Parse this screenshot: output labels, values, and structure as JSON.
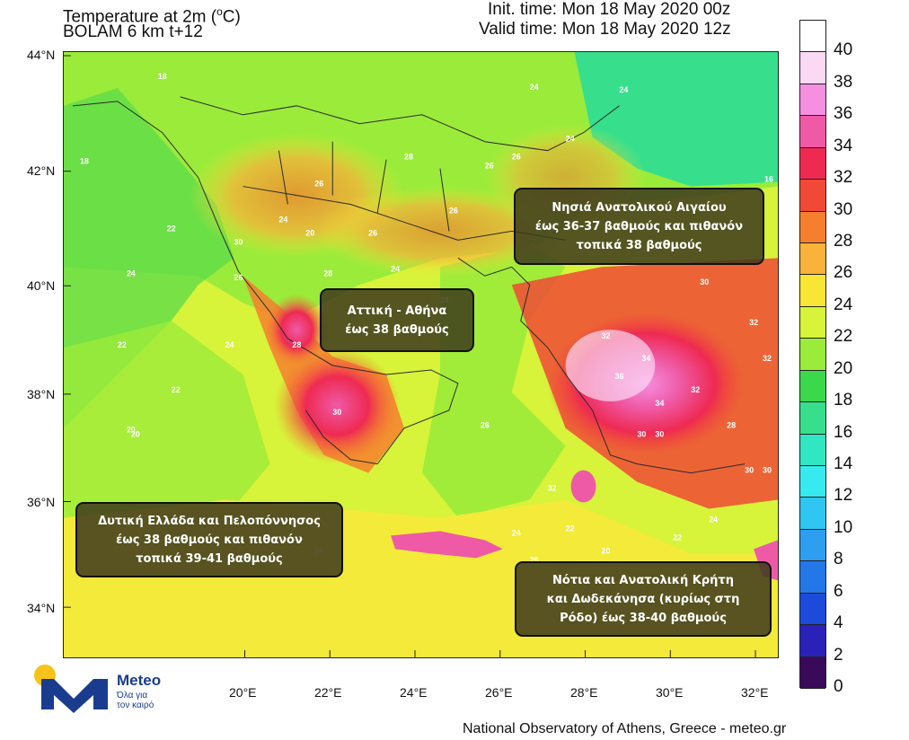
{
  "header": {
    "title_line1": "Temperature at 2m (",
    "title_unit": "o",
    "title_unit_tail": "C)",
    "title_line2": "BOLAM 6 km t+12",
    "init_time": "Init. time: Mon 18 May 2020 00z",
    "valid_time": "Valid time: Mon 18 May 2020 12z"
  },
  "axes": {
    "lat_labels": [
      "44°N",
      "42°N",
      "40°N",
      "38°N",
      "36°N",
      "34°N"
    ],
    "lon_labels": [
      "20°E",
      "22°E",
      "24°E",
      "26°E",
      "28°E",
      "30°E",
      "32°E"
    ]
  },
  "callouts": {
    "north_aegean": [
      "Νησιά Ανατολικού Αιγαίου",
      "έως 36-37 βαθμούς και πιθανόν",
      "τοπικά 38 βαθμούς"
    ],
    "attica": [
      "Αττική - Αθήνα",
      "έως 38 βαθμούς"
    ],
    "west_greece": [
      "Δυτική Ελλάδα και Πελοπόννησος",
      "έως 38 βαθμούς και πιθανόν",
      "τοπικά 39-41 βαθμούς"
    ],
    "crete": [
      "Νότια και Ανατολική Κρήτη",
      "και Δωδεκάνησα (κυρίως στη",
      "Ρόδο) έως 38-40 βαθμούς"
    ]
  },
  "colorbar": {
    "labels": [
      "40",
      "38",
      "36",
      "34",
      "32",
      "30",
      "28",
      "26",
      "24",
      "22",
      "20",
      "18",
      "16",
      "14",
      "12",
      "10",
      "8",
      "6",
      "4",
      "2",
      "0"
    ],
    "colors": [
      "#ffffff",
      "#fbd8f4",
      "#f58fe0",
      "#ef5aa6",
      "#ee2a52",
      "#f04a36",
      "#f67f2e",
      "#f9b23a",
      "#f9e634",
      "#d7f33a",
      "#9beb3a",
      "#3cd84c",
      "#37df8c",
      "#30e6c3",
      "#37eaf0",
      "#2fc6f1",
      "#2e9ef0",
      "#2377e8",
      "#1b4bd8",
      "#2a22b8",
      "#3a0a5a"
    ]
  },
  "footer": "National Observatory of Athens, Greece - meteo.gr",
  "logo": {
    "name": "Meteo",
    "tagline_1": "Όλα για",
    "tagline_2": "τον καιρό"
  },
  "map_labels": [
    {
      "v": "18"
    },
    {
      "v": "18"
    },
    {
      "v": "16"
    },
    {
      "v": "24"
    },
    {
      "v": "24"
    },
    {
      "v": "26"
    },
    {
      "v": "24"
    },
    {
      "v": "20"
    },
    {
      "v": "22"
    },
    {
      "v": "24"
    },
    {
      "v": "22"
    },
    {
      "v": "26"
    },
    {
      "v": "28"
    },
    {
      "v": "24"
    },
    {
      "v": "20"
    },
    {
      "v": "22"
    },
    {
      "v": "24"
    },
    {
      "v": "26"
    },
    {
      "v": "26"
    },
    {
      "v": "24"
    },
    {
      "v": "30"
    },
    {
      "v": "28"
    },
    {
      "v": "26"
    },
    {
      "v": "28"
    },
    {
      "v": "26"
    },
    {
      "v": "28"
    },
    {
      "v": "20"
    },
    {
      "v": "30"
    },
    {
      "v": "32"
    },
    {
      "v": "34"
    },
    {
      "v": "32"
    },
    {
      "v": "30"
    },
    {
      "v": "32"
    },
    {
      "v": "34"
    },
    {
      "v": "36"
    },
    {
      "v": "32"
    },
    {
      "v": "30"
    },
    {
      "v": "30"
    },
    {
      "v": "32"
    },
    {
      "v": "30"
    },
    {
      "v": "26"
    },
    {
      "v": "24"
    },
    {
      "v": "22"
    },
    {
      "v": "20"
    },
    {
      "v": "22"
    },
    {
      "v": "24"
    },
    {
      "v": "24"
    },
    {
      "v": "26"
    },
    {
      "v": "28"
    },
    {
      "v": "30"
    }
  ]
}
